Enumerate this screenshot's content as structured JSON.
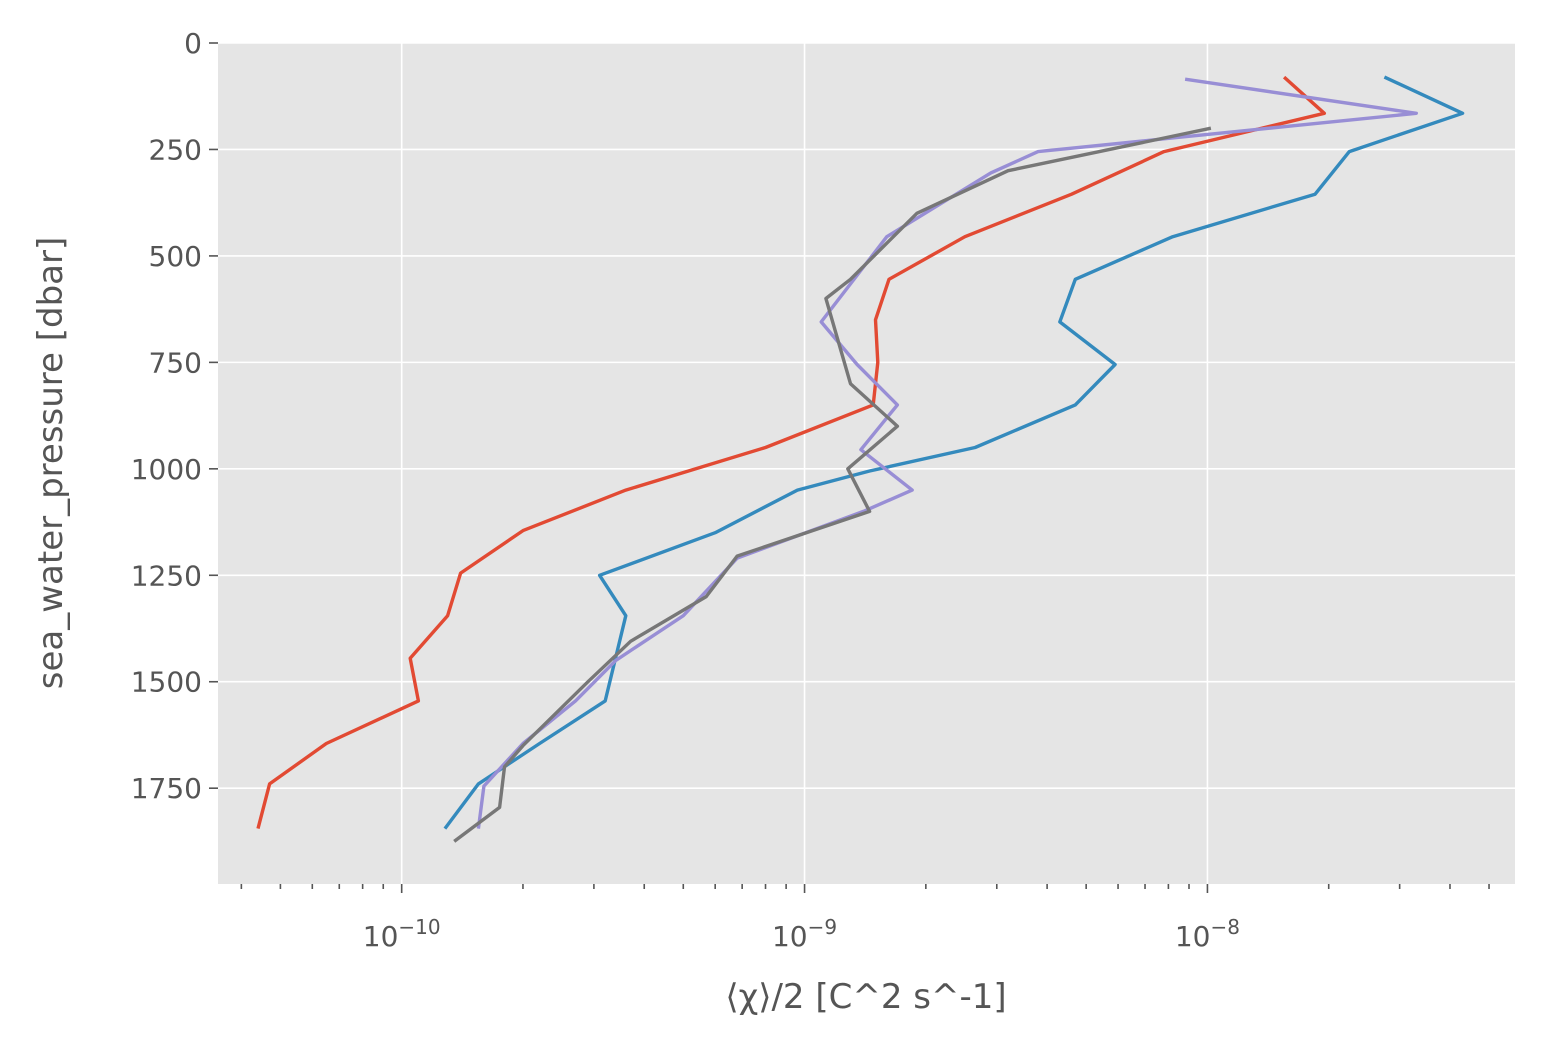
{
  "chart_data": {
    "type": "line",
    "xlabel": "⟨χ⟩/2 [C^2 s^-1]",
    "ylabel": "sea_water_pressure [dbar]",
    "xscale": "log",
    "yaxis_inverted": true,
    "xlim": [
      3.5e-11,
      5.8e-08
    ],
    "ylim": [
      1975,
      0
    ],
    "grid": true,
    "background_color": "#e5e5e5",
    "x_major_ticks": [
      {
        "value": 1e-10,
        "base": "10",
        "exp": "−10"
      },
      {
        "value": 1e-09,
        "base": "10",
        "exp": "−9"
      },
      {
        "value": 1e-08,
        "base": "10",
        "exp": "−8"
      }
    ],
    "y_ticks": [
      0,
      250,
      500,
      750,
      1000,
      1250,
      1500,
      1750
    ],
    "y_tick_labels": [
      "0",
      "250",
      "500",
      "750",
      "1000",
      "1250",
      "1500",
      "1750"
    ],
    "series": [
      {
        "color": "#e24a33",
        "points": [
          [
            1.55e-08,
            80
          ],
          [
            1.95e-08,
            165
          ],
          [
            7.8e-09,
            255
          ],
          [
            4.6e-09,
            355
          ],
          [
            2.5e-09,
            455
          ],
          [
            1.62e-09,
            555
          ],
          [
            1.5e-09,
            650
          ],
          [
            1.52e-09,
            750
          ],
          [
            1.48e-09,
            850
          ],
          [
            8e-10,
            950
          ],
          [
            3.6e-10,
            1050
          ],
          [
            2e-10,
            1145
          ],
          [
            1.4e-10,
            1245
          ],
          [
            1.3e-10,
            1345
          ],
          [
            1.05e-10,
            1445
          ],
          [
            1.1e-10,
            1545
          ],
          [
            6.5e-11,
            1645
          ],
          [
            4.7e-11,
            1740
          ],
          [
            4.4e-11,
            1845
          ]
        ]
      },
      {
        "color": "#348abd",
        "points": [
          [
            2.75e-08,
            80
          ],
          [
            4.3e-08,
            165
          ],
          [
            2.25e-08,
            255
          ],
          [
            1.85e-08,
            355
          ],
          [
            8.2e-09,
            455
          ],
          [
            4.7e-09,
            555
          ],
          [
            4.3e-09,
            655
          ],
          [
            5.9e-09,
            755
          ],
          [
            4.7e-09,
            850
          ],
          [
            2.65e-09,
            950
          ],
          [
            1.45e-09,
            1005
          ],
          [
            9.6e-10,
            1050
          ],
          [
            6e-10,
            1150
          ],
          [
            3.1e-10,
            1250
          ],
          [
            3.6e-10,
            1345
          ],
          [
            3.2e-10,
            1545
          ],
          [
            2.2e-10,
            1645
          ],
          [
            1.55e-10,
            1740
          ],
          [
            1.28e-10,
            1845
          ]
        ]
      },
      {
        "color": "#988ed5",
        "points": [
          [
            8.8e-09,
            85
          ],
          [
            3.3e-08,
            165
          ],
          [
            3.8e-09,
            255
          ],
          [
            2.9e-09,
            305
          ],
          [
            1.6e-09,
            455
          ],
          [
            1.1e-09,
            655
          ],
          [
            1.35e-09,
            755
          ],
          [
            1.7e-09,
            850
          ],
          [
            1.38e-09,
            955
          ],
          [
            1.85e-09,
            1050
          ],
          [
            1.4e-09,
            1100
          ],
          [
            6.8e-10,
            1210
          ],
          [
            5e-10,
            1345
          ],
          [
            3.4e-10,
            1450
          ],
          [
            2.7e-10,
            1545
          ],
          [
            2e-10,
            1645
          ],
          [
            1.6e-10,
            1745
          ],
          [
            1.55e-10,
            1845
          ]
        ]
      },
      {
        "color": "#777777",
        "points": [
          [
            1.02e-08,
            200
          ],
          [
            3.2e-09,
            300
          ],
          [
            1.9e-09,
            400
          ],
          [
            1.3e-09,
            555
          ],
          [
            1.13e-09,
            600
          ],
          [
            1.3e-09,
            800
          ],
          [
            1.7e-09,
            900
          ],
          [
            1.28e-09,
            1000
          ],
          [
            1.45e-09,
            1100
          ],
          [
            6.8e-10,
            1205
          ],
          [
            5.7e-10,
            1300
          ],
          [
            3.7e-10,
            1405
          ],
          [
            2.9e-10,
            1500
          ],
          [
            2e-10,
            1650
          ],
          [
            1.8e-10,
            1700
          ],
          [
            1.75e-10,
            1795
          ],
          [
            1.35e-10,
            1875
          ]
        ]
      }
    ]
  }
}
